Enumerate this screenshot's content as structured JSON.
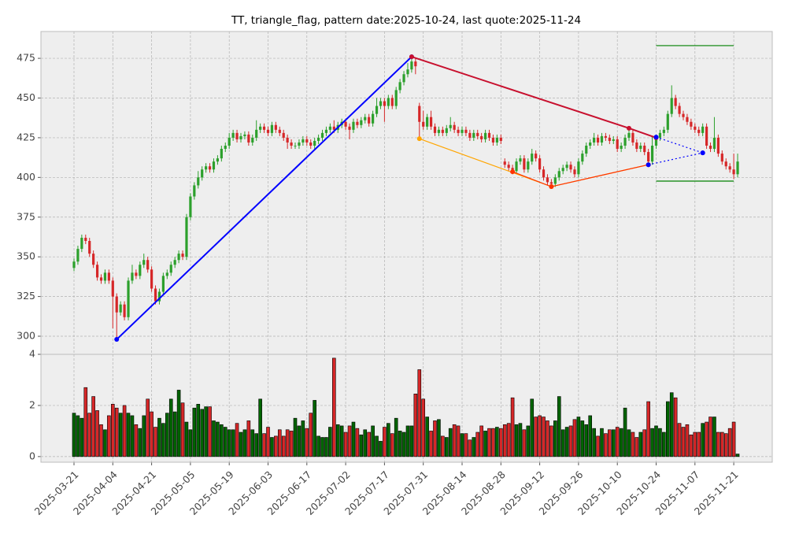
{
  "chart_data": {
    "type": "candlestick",
    "title": "TT, triangle_flag, pattern date:2025-10-24, last quote:2025-11-24",
    "x": [
      "2025-03-21",
      "2025-03-24",
      "2025-03-25",
      "2025-03-26",
      "2025-03-27",
      "2025-03-28",
      "2025-03-31",
      "2025-04-01",
      "2025-04-02",
      "2025-04-03",
      "2025-04-04",
      "2025-04-07",
      "2025-04-08",
      "2025-04-09",
      "2025-04-10",
      "2025-04-11",
      "2025-04-14",
      "2025-04-15",
      "2025-04-16",
      "2025-04-17",
      "2025-04-21",
      "2025-04-22",
      "2025-04-23",
      "2025-04-24",
      "2025-04-25",
      "2025-04-28",
      "2025-04-29",
      "2025-04-30",
      "2025-05-01",
      "2025-05-02",
      "2025-05-05",
      "2025-05-06",
      "2025-05-07",
      "2025-05-08",
      "2025-05-09",
      "2025-05-12",
      "2025-05-13",
      "2025-05-14",
      "2025-05-15",
      "2025-05-16",
      "2025-05-19",
      "2025-05-20",
      "2025-05-21",
      "2025-05-22",
      "2025-05-23",
      "2025-05-27",
      "2025-05-28",
      "2025-05-29",
      "2025-05-30",
      "2025-06-02",
      "2025-06-03",
      "2025-06-04",
      "2025-06-05",
      "2025-06-06",
      "2025-06-09",
      "2025-06-10",
      "2025-06-11",
      "2025-06-12",
      "2025-06-13",
      "2025-06-16",
      "2025-06-17",
      "2025-06-18",
      "2025-06-20",
      "2025-06-23",
      "2025-06-24",
      "2025-06-25",
      "2025-06-26",
      "2025-06-27",
      "2025-06-30",
      "2025-07-01",
      "2025-07-02",
      "2025-07-03",
      "2025-07-07",
      "2025-07-08",
      "2025-07-09",
      "2025-07-10",
      "2025-07-11",
      "2025-07-14",
      "2025-07-15",
      "2025-07-16",
      "2025-07-17",
      "2025-07-18",
      "2025-07-21",
      "2025-07-22",
      "2025-07-23",
      "2025-07-24",
      "2025-07-25",
      "2025-07-28",
      "2025-07-29",
      "2025-07-30",
      "2025-07-31",
      "2025-08-01",
      "2025-08-04",
      "2025-08-05",
      "2025-08-06",
      "2025-08-07",
      "2025-08-08",
      "2025-08-11",
      "2025-08-12",
      "2025-08-13",
      "2025-08-14",
      "2025-08-15",
      "2025-08-18",
      "2025-08-19",
      "2025-08-20",
      "2025-08-21",
      "2025-08-22",
      "2025-08-25",
      "2025-08-26",
      "2025-08-27",
      "2025-08-28",
      "2025-08-29",
      "2025-09-02",
      "2025-09-03",
      "2025-09-04",
      "2025-09-05",
      "2025-09-08",
      "2025-09-09",
      "2025-09-10",
      "2025-09-11",
      "2025-09-12",
      "2025-09-15",
      "2025-09-16",
      "2025-09-17",
      "2025-09-18",
      "2025-09-19",
      "2025-09-22",
      "2025-09-23",
      "2025-09-24",
      "2025-09-25",
      "2025-09-26",
      "2025-09-29",
      "2025-09-30",
      "2025-10-01",
      "2025-10-02",
      "2025-10-03",
      "2025-10-06",
      "2025-10-07",
      "2025-10-08",
      "2025-10-09",
      "2025-10-10",
      "2025-10-13",
      "2025-10-14",
      "2025-10-15",
      "2025-10-16",
      "2025-10-17",
      "2025-10-20",
      "2025-10-21",
      "2025-10-22",
      "2025-10-23",
      "2025-10-24",
      "2025-10-27",
      "2025-10-28",
      "2025-10-29",
      "2025-10-30",
      "2025-10-31",
      "2025-11-03",
      "2025-11-04",
      "2025-11-05",
      "2025-11-06",
      "2025-11-07",
      "2025-11-10",
      "2025-11-11",
      "2025-11-12",
      "2025-11-13",
      "2025-11-14",
      "2025-11-17",
      "2025-11-18",
      "2025-11-19",
      "2025-11-20",
      "2025-11-21",
      "2025-11-24"
    ],
    "open": [
      343,
      347,
      355,
      362,
      360,
      352,
      345,
      337,
      335,
      340,
      335,
      325,
      315,
      320,
      312,
      335,
      340,
      338,
      345,
      348,
      342,
      330,
      322,
      328,
      338,
      340,
      345,
      348,
      352,
      350,
      375,
      388,
      395,
      400,
      405,
      407,
      405,
      410,
      412,
      418,
      420,
      425,
      428,
      424,
      426,
      427,
      422,
      425,
      430,
      432,
      430,
      428,
      433,
      430,
      428,
      425,
      422,
      420,
      420,
      422,
      424,
      422,
      420,
      423,
      425,
      428,
      430,
      432,
      430,
      433,
      435,
      432,
      430,
      435,
      433,
      436,
      438,
      434,
      440,
      445,
      448,
      445,
      450,
      445,
      455,
      460,
      465,
      468,
      473,
      445,
      435,
      432,
      438,
      432,
      428,
      430,
      428,
      431,
      433,
      430,
      428,
      430,
      428,
      425,
      428,
      426,
      424,
      428,
      425,
      422,
      425,
      410,
      408,
      406,
      404,
      410,
      412,
      405,
      410,
      415,
      412,
      405,
      400,
      397,
      396,
      400,
      404,
      406,
      408,
      405,
      402,
      410,
      415,
      420,
      422,
      425,
      422,
      426,
      425,
      423,
      424,
      418,
      420,
      425,
      428,
      422,
      418,
      420,
      416,
      410,
      420,
      425,
      428,
      430,
      440,
      450,
      445,
      440,
      438,
      435,
      432,
      430,
      428,
      432,
      420,
      418,
      425,
      415,
      410,
      407,
      405,
      402
    ],
    "high": [
      349,
      357,
      364,
      364,
      362,
      354,
      347,
      339,
      342,
      342,
      337,
      327,
      322,
      322,
      337,
      345,
      342,
      347,
      352,
      350,
      344,
      332,
      330,
      340,
      342,
      347,
      350,
      354,
      354,
      377,
      390,
      397,
      404,
      407,
      409,
      409,
      412,
      414,
      420,
      422,
      428,
      430,
      430,
      428,
      429,
      429,
      427,
      436,
      434,
      434,
      432,
      435,
      435,
      432,
      430,
      427,
      424,
      422,
      424,
      426,
      426,
      424,
      425,
      427,
      430,
      432,
      434,
      436,
      435,
      437,
      437,
      434,
      437,
      437,
      438,
      440,
      440,
      442,
      450,
      450,
      450,
      452,
      452,
      457,
      462,
      467,
      472,
      476,
      475,
      447,
      442,
      440,
      442,
      434,
      432,
      432,
      433,
      438,
      435,
      432,
      432,
      432,
      430,
      430,
      430,
      428,
      430,
      430,
      427,
      427,
      427,
      412,
      410,
      408,
      412,
      414,
      414,
      412,
      418,
      417,
      414,
      407,
      402,
      399,
      402,
      406,
      408,
      410,
      410,
      407,
      412,
      417,
      422,
      424,
      428,
      427,
      428,
      428,
      427,
      426,
      426,
      422,
      427,
      430,
      430,
      424,
      422,
      422,
      418,
      426,
      427,
      430,
      432,
      442,
      458,
      452,
      447,
      442,
      440,
      437,
      434,
      432,
      434,
      434,
      422,
      438,
      427,
      417,
      412,
      409,
      415,
      415
    ],
    "low": [
      341,
      345,
      353,
      358,
      350,
      343,
      335,
      333,
      333,
      333,
      305,
      298,
      313,
      310,
      310,
      333,
      336,
      336,
      343,
      340,
      328,
      320,
      320,
      326,
      336,
      338,
      343,
      346,
      348,
      348,
      373,
      386,
      393,
      398,
      403,
      403,
      403,
      408,
      410,
      416,
      418,
      423,
      422,
      422,
      424,
      420,
      420,
      423,
      428,
      428,
      426,
      426,
      428,
      426,
      423,
      418,
      418,
      418,
      418,
      420,
      420,
      418,
      418,
      421,
      423,
      426,
      428,
      428,
      428,
      431,
      430,
      424,
      428,
      431,
      431,
      434,
      432,
      432,
      438,
      443,
      435,
      443,
      443,
      443,
      453,
      458,
      463,
      466,
      465,
      424,
      430,
      430,
      430,
      426,
      426,
      426,
      426,
      429,
      428,
      426,
      426,
      426,
      423,
      423,
      424,
      422,
      422,
      423,
      420,
      420,
      421,
      406,
      404,
      402,
      402,
      408,
      403,
      403,
      408,
      410,
      403,
      398,
      395,
      394,
      394,
      398,
      402,
      404,
      403,
      400,
      400,
      408,
      413,
      418,
      420,
      420,
      420,
      423,
      421,
      421,
      416,
      416,
      418,
      423,
      420,
      416,
      416,
      414,
      408,
      408,
      418,
      423,
      426,
      428,
      438,
      443,
      438,
      436,
      433,
      430,
      428,
      426,
      426,
      418,
      416,
      416,
      413,
      408,
      405,
      403,
      399,
      400
    ],
    "close": [
      347,
      355,
      362,
      360,
      352,
      345,
      337,
      335,
      340,
      335,
      325,
      315,
      320,
      312,
      335,
      340,
      338,
      345,
      348,
      342,
      330,
      322,
      328,
      338,
      340,
      345,
      348,
      352,
      350,
      375,
      388,
      395,
      400,
      405,
      407,
      405,
      410,
      412,
      418,
      420,
      425,
      428,
      424,
      426,
      427,
      422,
      425,
      430,
      432,
      430,
      428,
      433,
      430,
      428,
      425,
      422,
      420,
      420,
      422,
      424,
      422,
      420,
      423,
      425,
      428,
      430,
      432,
      430,
      433,
      435,
      432,
      430,
      435,
      433,
      436,
      438,
      434,
      440,
      445,
      448,
      445,
      450,
      445,
      455,
      460,
      465,
      468,
      473,
      470,
      435,
      432,
      438,
      432,
      428,
      430,
      428,
      431,
      433,
      430,
      428,
      430,
      428,
      425,
      428,
      426,
      424,
      428,
      425,
      422,
      425,
      423,
      408,
      406,
      404,
      410,
      412,
      405,
      410,
      415,
      412,
      405,
      400,
      397,
      396,
      400,
      404,
      406,
      408,
      405,
      402,
      410,
      415,
      420,
      422,
      425,
      422,
      426,
      425,
      423,
      424,
      418,
      420,
      425,
      428,
      422,
      418,
      420,
      416,
      410,
      420,
      425,
      428,
      430,
      440,
      450,
      445,
      440,
      438,
      435,
      432,
      430,
      428,
      432,
      420,
      418,
      425,
      415,
      410,
      407,
      405,
      402,
      410
    ],
    "up_color": "#2ca02c",
    "down_color": "#d62728",
    "ylim": [
      288.6,
      491.9
    ],
    "yticks": [
      300,
      325,
      350,
      375,
      400,
      425,
      450,
      475
    ],
    "xticks": [
      "2025-03-21",
      "2025-04-04",
      "2025-04-21",
      "2025-05-05",
      "2025-05-19",
      "2025-06-03",
      "2025-06-17",
      "2025-07-02",
      "2025-07-17",
      "2025-07-31",
      "2025-08-14",
      "2025-08-28",
      "2025-09-12",
      "2025-09-26",
      "2025-10-10",
      "2025-10-24",
      "2025-11-07",
      "2025-11-21"
    ],
    "grid": true,
    "volume": {
      "ylim": [
        -0.22,
        4.0
      ],
      "yticks": [
        0,
        2,
        4
      ],
      "up_color": "#006400",
      "down_color": "#d62728",
      "values": [
        1.7,
        1.6,
        1.5,
        2.7,
        1.7,
        2.35,
        1.8,
        1.25,
        1.05,
        1.6,
        2.05,
        1.9,
        1.7,
        2.0,
        1.7,
        1.6,
        1.25,
        1.1,
        1.6,
        2.25,
        1.75,
        1.15,
        1.5,
        1.3,
        1.7,
        2.25,
        1.75,
        2.6,
        2.1,
        1.35,
        1.05,
        1.9,
        2.05,
        1.85,
        1.95,
        1.95,
        1.4,
        1.35,
        1.25,
        1.15,
        1.05,
        1.05,
        1.3,
        0.95,
        1.05,
        1.4,
        1.05,
        0.9,
        2.25,
        0.9,
        1.15,
        0.75,
        0.8,
        1.05,
        0.8,
        1.05,
        1.0,
        1.5,
        1.2,
        1.4,
        1.1,
        1.7,
        2.2,
        0.8,
        0.75,
        0.75,
        1.15,
        3.85,
        1.25,
        1.2,
        0.95,
        1.2,
        1.35,
        1.1,
        0.85,
        1.05,
        0.95,
        1.2,
        0.8,
        0.6,
        1.15,
        1.3,
        0.9,
        1.5,
        1.0,
        0.95,
        1.2,
        1.2,
        2.45,
        3.4,
        2.25,
        1.55,
        1.0,
        1.4,
        1.45,
        0.8,
        0.75,
        1.1,
        1.25,
        1.2,
        0.9,
        0.9,
        0.65,
        0.75,
        0.95,
        1.2,
        1.0,
        1.1,
        1.1,
        1.15,
        1.1,
        1.25,
        1.3,
        2.3,
        1.25,
        1.3,
        1.05,
        1.2,
        2.25,
        1.55,
        1.6,
        1.55,
        1.4,
        1.2,
        1.4,
        2.35,
        1.05,
        1.15,
        1.2,
        1.45,
        1.55,
        1.4,
        1.25,
        1.6,
        1.1,
        0.8,
        1.1,
        0.9,
        1.05,
        1.05,
        1.15,
        1.1,
        1.9,
        1.05,
        0.95,
        0.75,
        0.95,
        1.05,
        2.15,
        1.1,
        1.2,
        1.1,
        0.95,
        2.15,
        2.5,
        2.3,
        1.3,
        1.15,
        1.25,
        0.85,
        0.95,
        0.95,
        1.3,
        1.35,
        1.55,
        1.55,
        0.95,
        0.95,
        0.9,
        1.1,
        1.35,
        0.1
      ]
    },
    "lines": [
      {
        "color": "#0000ff",
        "style": "solid",
        "width": 2,
        "marker_color": "#0000ff",
        "x": [
          "2025-04-07",
          "2025-07-28"
        ],
        "y": [
          298,
          476
        ]
      },
      {
        "color": "#c8102e",
        "style": "solid",
        "width": 2,
        "marker_color": "#c8102e",
        "x": [
          "2025-07-28",
          "2025-10-15",
          "2025-10-24"
        ],
        "y": [
          476,
          431,
          425
        ]
      },
      {
        "color": "#ffa500",
        "style": "solid",
        "width": 1.2,
        "marker_color": "#ffa500",
        "x": [
          "2025-07-30",
          "2025-09-17",
          "2025-10-22"
        ],
        "y": [
          424.4,
          394.2,
          408
        ]
      },
      {
        "color": "#ff3300",
        "style": "solid",
        "width": 1.2,
        "marker_color": "#ff3300",
        "x": [
          "2025-09-03",
          "2025-09-17",
          "2025-10-22"
        ],
        "y": [
          403.6,
          394.2,
          408
        ]
      },
      {
        "color": "#0000ff",
        "style": "dotted",
        "width": 1.2,
        "marker_color": "#0000ff",
        "x": [
          "2025-10-22",
          "2025-11-11"
        ],
        "y": [
          408,
          415.5
        ]
      },
      {
        "color": "#0000ff",
        "style": "dotted",
        "width": 1.2,
        "marker_color": "#0000ff",
        "x": [
          "2025-10-24",
          "2025-11-11"
        ],
        "y": [
          425.4,
          415.5
        ]
      },
      {
        "color": "#008000",
        "style": "solid",
        "width": 1.2,
        "x": [
          "2025-10-24",
          "2025-11-21"
        ],
        "y": [
          483,
          483
        ]
      },
      {
        "color": "#008000",
        "style": "solid",
        "width": 1.2,
        "x": [
          "2025-10-24",
          "2025-11-21"
        ],
        "y": [
          397.7,
          397.7
        ]
      }
    ]
  }
}
